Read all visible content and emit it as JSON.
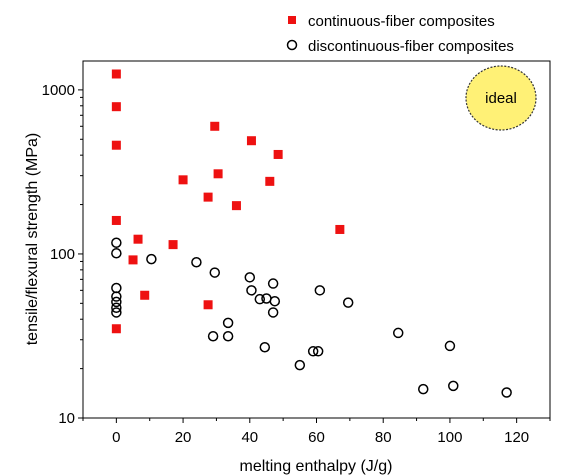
{
  "chart_data": {
    "type": "scatter",
    "xlabel": "melting enthalpy (J/g)",
    "ylabel": "tensile/flexural strength (MPa)",
    "xlim": [
      -10,
      130
    ],
    "ylim": [
      10,
      1500
    ],
    "y_scale": "log",
    "x_ticks": [
      0,
      20,
      40,
      60,
      80,
      100,
      120
    ],
    "y_ticks": [
      10,
      100,
      1000
    ],
    "grid": false,
    "legend_position": "top-right",
    "annotation": {
      "text": "ideal",
      "fill": "#fff176",
      "border": "#333333"
    },
    "series": [
      {
        "name": "continuous-fiber composites",
        "marker": "filled-square",
        "color": "#ee1111",
        "points": [
          [
            0,
            1250
          ],
          [
            0,
            790
          ],
          [
            0,
            460
          ],
          [
            0,
            160
          ],
          [
            0,
            35
          ],
          [
            5,
            92
          ],
          [
            6.5,
            123
          ],
          [
            8.5,
            56
          ],
          [
            17,
            114
          ],
          [
            20,
            283
          ],
          [
            27.5,
            222
          ],
          [
            27.5,
            49
          ],
          [
            29.5,
            600
          ],
          [
            30.5,
            308
          ],
          [
            36,
            197
          ],
          [
            40.5,
            490
          ],
          [
            46,
            277
          ],
          [
            48.5,
            404
          ],
          [
            67,
            141
          ]
        ]
      },
      {
        "name": "discontinuous-fiber composites",
        "marker": "open-circle",
        "color": "#000000",
        "points": [
          [
            0,
            117
          ],
          [
            0,
            101
          ],
          [
            0,
            62
          ],
          [
            0,
            55
          ],
          [
            0,
            51
          ],
          [
            0,
            47
          ],
          [
            0,
            44
          ],
          [
            10.5,
            93
          ],
          [
            24,
            89
          ],
          [
            29.5,
            77
          ],
          [
            29,
            31.5
          ],
          [
            33.5,
            38
          ],
          [
            33.5,
            31.5
          ],
          [
            40,
            72
          ],
          [
            40.5,
            60
          ],
          [
            43,
            53
          ],
          [
            44.5,
            27
          ],
          [
            45,
            53.5
          ],
          [
            47,
            66
          ],
          [
            47,
            44
          ],
          [
            47.5,
            51.5
          ],
          [
            55,
            21
          ],
          [
            59,
            25.5
          ],
          [
            60.5,
            25.5
          ],
          [
            61,
            60
          ],
          [
            69.5,
            50.5
          ],
          [
            84.5,
            33
          ],
          [
            92,
            15
          ],
          [
            100,
            27.5
          ],
          [
            101,
            15.7
          ],
          [
            117,
            14.3
          ]
        ]
      }
    ]
  }
}
